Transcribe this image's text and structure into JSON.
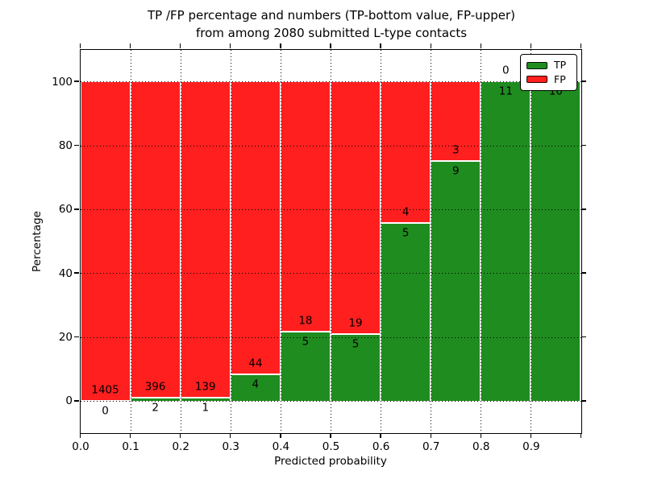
{
  "figure": {
    "title_line1": "TP /FP percentage and numbers (TP-bottom value, FP-upper)",
    "title_line2": "from among 2080 submitted L-type contacts"
  },
  "axes": {
    "x_label": "Predicted probability",
    "y_label": "Percentage",
    "x_tick_labels": [
      "0.0",
      "0.1",
      "0.2",
      "0.3",
      "0.4",
      "0.5",
      "0.6",
      "0.7",
      "0.8",
      "0.9"
    ],
    "y_tick_labels": [
      "0",
      "20",
      "40",
      "60",
      "80",
      "100"
    ],
    "xlim": [
      0,
      1
    ],
    "ylim": [
      -10,
      110
    ]
  },
  "legend": {
    "items": [
      {
        "label": "TP",
        "color": "#1f8c1f"
      },
      {
        "label": "FP",
        "color": "#ff1f1f"
      }
    ]
  },
  "chart_data": {
    "type": "bar",
    "stacked": true,
    "normalized": "each 0.1-wide bin scaled to 100%, TP segment bottom, FP segment top",
    "title": "TP /FP percentage and numbers (TP-bottom value, FP-upper) from among 2080 submitted L-type contacts",
    "xlabel": "Predicted probability",
    "ylabel": "Percentage",
    "xlim": [
      0,
      1
    ],
    "ylim": [
      -10,
      110
    ],
    "grid": "black dotted gridlines drawn above bars at x=0.1..0.9 and y=0,20,40,60,80,100",
    "legend_position": "upper right",
    "bin_width": 0.1,
    "bin_starts": [
      0.0,
      0.1,
      0.2,
      0.3,
      0.4,
      0.5,
      0.6,
      0.7,
      0.8,
      0.9
    ],
    "categories": [
      "0.0-0.1",
      "0.1-0.2",
      "0.2-0.3",
      "0.3-0.4",
      "0.4-0.5",
      "0.5-0.6",
      "0.6-0.7",
      "0.7-0.8",
      "0.8-0.9",
      "0.9-1.0"
    ],
    "series": [
      {
        "name": "TP",
        "position": "bottom",
        "color": "#1f8c1f",
        "counts": [
          0,
          2,
          1,
          4,
          5,
          5,
          5,
          9,
          11,
          10
        ]
      },
      {
        "name": "FP",
        "position": "top",
        "color": "#ff1f1f",
        "counts": [
          1405,
          396,
          139,
          44,
          18,
          19,
          4,
          3,
          0,
          0
        ]
      }
    ],
    "tp_percent_by_bin": [
      0.0,
      0.5,
      0.7,
      8.3,
      21.7,
      20.8,
      55.6,
      75.0,
      100.0,
      100.0
    ],
    "total_contacts": 2080,
    "note": "count labels printed on bars: FP count just above TP/FP boundary, TP count just below it; FP label of last bin (0) hidden behind legend"
  }
}
